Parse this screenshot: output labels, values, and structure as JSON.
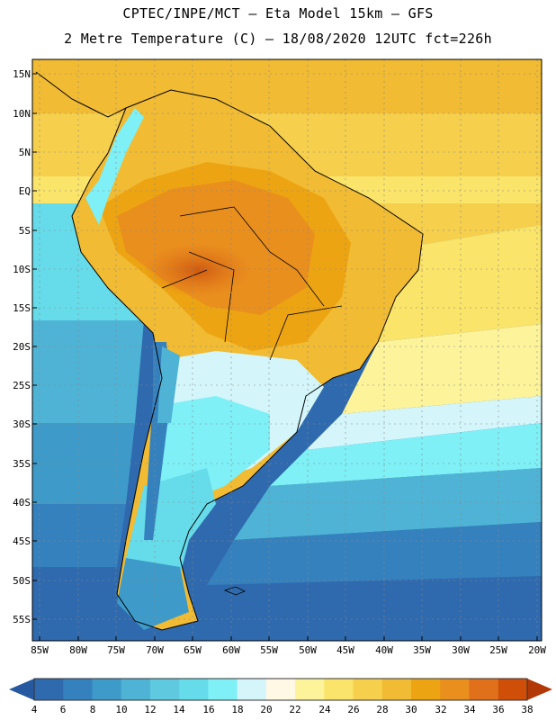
{
  "header": {
    "line1": "CPTEC/INPE/MCT –  Eta Model 15km – GFS",
    "line2": "2 Metre Temperature (C) – 18/08/2020 12UTC fct=226h"
  },
  "map": {
    "region": "South America",
    "lat_labels": [
      "15N",
      "10N",
      "5N",
      "EQ",
      "5S",
      "10S",
      "15S",
      "20S",
      "25S",
      "30S",
      "35S",
      "40S",
      "45S",
      "50S",
      "55S"
    ],
    "lon_labels": [
      "85W",
      "80W",
      "75W",
      "70W",
      "65W",
      "60W",
      "55W",
      "50W",
      "45W",
      "40W",
      "35W",
      "30W",
      "25W",
      "20W"
    ]
  },
  "colorbar": {
    "labels": [
      "4",
      "6",
      "8",
      "10",
      "12",
      "14",
      "16",
      "18",
      "20",
      "22",
      "24",
      "26",
      "28",
      "30",
      "32",
      "34",
      "36",
      "38"
    ],
    "colors": [
      "#2f6aae",
      "#3581be",
      "#3e9bc9",
      "#4fb3d6",
      "#5ec9df",
      "#66dcea",
      "#7ef0f6",
      "#d4f6fb",
      "#fff8e4",
      "#fdf39a",
      "#fae469",
      "#f6cf4c",
      "#f1bb33",
      "#eda412",
      "#e98f1e",
      "#e0701a",
      "#cf4f08",
      "#b23806"
    ],
    "low_end_color": "#2759a0",
    "high_end_color": "#b23806"
  }
}
